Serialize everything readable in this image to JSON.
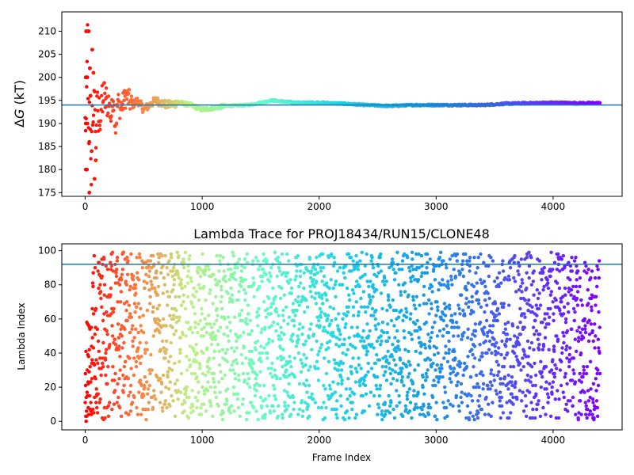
{
  "chart_data": [
    {
      "type": "scatter",
      "title": "",
      "ylabel": "ΔG (kT)",
      "xlabel": "",
      "xlim": [
        -200,
        4590
      ],
      "ylim": [
        174.2,
        214.2
      ],
      "x_ticks": [
        0,
        1000,
        2000,
        3000,
        4000
      ],
      "y_ticks": [
        175,
        180,
        185,
        190,
        195,
        200,
        205,
        210
      ],
      "grid": false,
      "colormap": "rainbow (red at frame 0 to violet at last frame)",
      "hline": {
        "y": 194.0,
        "color": "#1f77b4"
      },
      "series": [
        {
          "x": [
            10,
            20,
            30,
            40,
            50,
            60,
            70,
            80,
            90,
            100,
            110,
            120,
            130,
            140,
            150,
            160,
            170,
            180,
            190,
            200,
            220,
            240,
            260,
            280,
            300,
            350,
            400,
            450,
            500,
            600,
            700,
            800,
            900,
            1000,
            1200,
            1400,
            1600,
            1800,
            2000,
            2200,
            2400,
            2600,
            2800,
            3000,
            3200,
            3400,
            3600,
            3800,
            4000,
            4200,
            4390
          ],
          "values": [
            190,
            210,
            180,
            200,
            175,
            196,
            186,
            200,
            183,
            197,
            188,
            193,
            191,
            196,
            192,
            199,
            194,
            196,
            193,
            195,
            191,
            196,
            189,
            195,
            193,
            196,
            194,
            195,
            193,
            195,
            194,
            194.5,
            194,
            193,
            193.8,
            194,
            195,
            194.5,
            194.5,
            194.3,
            194,
            193.8,
            194,
            194,
            194,
            194,
            194.3,
            194.4,
            194.5,
            194.4,
            194.4
          ]
        }
      ]
    },
    {
      "type": "scatter",
      "title": "Lambda Trace for PROJ18434/RUN15/CLONE48",
      "xlabel": "Frame Index",
      "ylabel": "Lambda Index",
      "xlim": [
        -200,
        4590
      ],
      "ylim": [
        -5,
        104
      ],
      "x_ticks": [
        0,
        1000,
        2000,
        3000,
        4000
      ],
      "y_ticks": [
        0,
        20,
        40,
        60,
        80,
        100
      ],
      "grid": false,
      "colormap": "rainbow (red at frame 0 to violet at last frame)",
      "hline": {
        "y": 92,
        "color": "#1f77b4"
      },
      "series": [
        {
          "description_of_distribution": "",
          "x": [
            0,
            4400
          ],
          "values": [
            0,
            99
          ]
        }
      ]
    }
  ]
}
